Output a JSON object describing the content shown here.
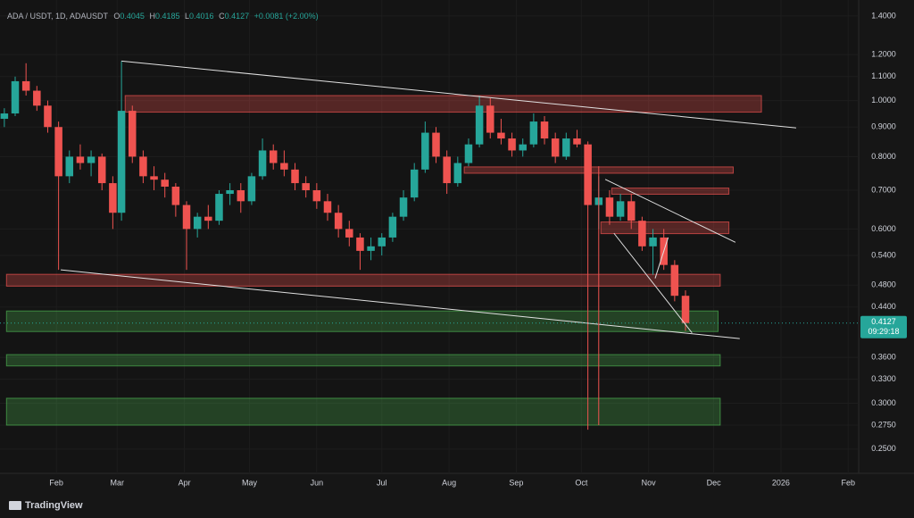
{
  "chart_data": {
    "type": "candlestick",
    "symbol": "ADA / USDT, 1D, ADAUSDT",
    "ohlc": [
      {
        "label": "O",
        "value": "0.4045"
      },
      {
        "label": "H",
        "value": "0.4185"
      },
      {
        "label": "L",
        "value": "0.4016"
      },
      {
        "label": "C",
        "value": "0.4127"
      }
    ],
    "change": "+0.0081 (+2.00%)",
    "brand": "TradingView",
    "log_scale": true,
    "up_color": "#26a69a",
    "down_color": "#ef5350",
    "ylim": [
      0.227,
      1.45
    ],
    "yticks": [
      {
        "value": 1.4,
        "label": "1.4000"
      },
      {
        "value": 1.2,
        "label": "1.2000"
      },
      {
        "value": 1.1,
        "label": "1.1000"
      },
      {
        "value": 1.0,
        "label": "1.0000"
      },
      {
        "value": 0.9,
        "label": "0.9000"
      },
      {
        "value": 0.8,
        "label": "0.8000"
      },
      {
        "value": 0.7,
        "label": "0.7000"
      },
      {
        "value": 0.6,
        "label": "0.6000"
      },
      {
        "value": 0.54,
        "label": "0.5400"
      },
      {
        "value": 0.48,
        "label": "0.4800"
      },
      {
        "value": 0.44,
        "label": "0.4400"
      },
      {
        "value": 0.36,
        "label": "0.3600"
      },
      {
        "value": 0.33,
        "label": "0.3300"
      },
      {
        "value": 0.3,
        "label": "0.3000"
      },
      {
        "value": 0.275,
        "label": "0.2750"
      },
      {
        "value": 0.25,
        "label": "0.2500"
      }
    ],
    "xlim": [
      5,
      400
    ],
    "xticks": [
      {
        "value": 31,
        "label": "Feb"
      },
      {
        "value": 59,
        "label": "Mar"
      },
      {
        "value": 90,
        "label": "Apr"
      },
      {
        "value": 120,
        "label": "May"
      },
      {
        "value": 151,
        "label": "Jun"
      },
      {
        "value": 181,
        "label": "Jul"
      },
      {
        "value": 212,
        "label": "Aug"
      },
      {
        "value": 243,
        "label": "Sep"
      },
      {
        "value": 273,
        "label": "Oct"
      },
      {
        "value": 304,
        "label": "Nov"
      },
      {
        "value": 334,
        "label": "Dec"
      },
      {
        "value": 365,
        "label": "2026"
      },
      {
        "value": 396,
        "label": "Feb"
      }
    ],
    "last_price": {
      "value": 0.4127,
      "label": "0.4127"
    },
    "countdown": "09:29:18",
    "x": [
      7,
      12,
      17,
      22,
      27,
      32,
      37,
      42,
      47,
      52,
      57,
      61,
      66,
      71,
      76,
      81,
      86,
      91,
      96,
      101,
      106,
      111,
      116,
      121,
      126,
      131,
      136,
      141,
      146,
      151,
      156,
      161,
      166,
      171,
      176,
      181,
      186,
      191,
      196,
      201,
      206,
      211,
      216,
      221,
      226,
      231,
      236,
      241,
      246,
      251,
      256,
      261,
      266,
      271,
      276,
      281,
      286,
      291,
      296,
      301,
      306,
      311,
      316,
      321
    ],
    "open": [
      0.93,
      0.95,
      1.08,
      1.04,
      0.98,
      0.9,
      0.74,
      0.8,
      0.78,
      0.8,
      0.72,
      0.64,
      0.96,
      0.8,
      0.74,
      0.73,
      0.71,
      0.66,
      0.6,
      0.63,
      0.62,
      0.69,
      0.7,
      0.67,
      0.74,
      0.82,
      0.78,
      0.76,
      0.72,
      0.7,
      0.67,
      0.64,
      0.6,
      0.58,
      0.55,
      0.56,
      0.58,
      0.63,
      0.68,
      0.76,
      0.88,
      0.8,
      0.72,
      0.78,
      0.84,
      0.98,
      0.88,
      0.86,
      0.82,
      0.84,
      0.92,
      0.86,
      0.8,
      0.86,
      0.84,
      0.66,
      0.68,
      0.63,
      0.67,
      0.62,
      0.56,
      0.58,
      0.52,
      0.46
    ],
    "high": [
      0.97,
      1.1,
      1.16,
      1.06,
      1.0,
      0.92,
      0.82,
      0.84,
      0.82,
      0.81,
      0.74,
      1.17,
      0.98,
      0.82,
      0.77,
      0.75,
      0.72,
      0.67,
      0.64,
      0.66,
      0.7,
      0.72,
      0.72,
      0.75,
      0.86,
      0.84,
      0.82,
      0.78,
      0.74,
      0.72,
      0.69,
      0.66,
      0.62,
      0.59,
      0.58,
      0.59,
      0.64,
      0.7,
      0.78,
      0.92,
      0.9,
      0.82,
      0.8,
      0.86,
      1.02,
      1.01,
      0.93,
      0.88,
      0.86,
      0.95,
      0.94,
      0.88,
      0.88,
      0.89,
      0.85,
      0.74,
      0.7,
      0.69,
      0.69,
      0.63,
      0.6,
      0.6,
      0.53,
      0.47
    ],
    "low": [
      0.9,
      0.94,
      1.02,
      0.96,
      0.88,
      0.51,
      0.72,
      0.76,
      0.74,
      0.7,
      0.6,
      0.62,
      0.78,
      0.72,
      0.7,
      0.68,
      0.63,
      0.51,
      0.58,
      0.6,
      0.61,
      0.66,
      0.64,
      0.66,
      0.73,
      0.76,
      0.74,
      0.7,
      0.68,
      0.65,
      0.62,
      0.58,
      0.56,
      0.51,
      0.53,
      0.54,
      0.57,
      0.62,
      0.67,
      0.75,
      0.78,
      0.69,
      0.71,
      0.77,
      0.83,
      0.86,
      0.84,
      0.8,
      0.8,
      0.83,
      0.84,
      0.78,
      0.79,
      0.83,
      0.27,
      0.6,
      0.61,
      0.62,
      0.6,
      0.55,
      0.5,
      0.51,
      0.45,
      0.4
    ],
    "close": [
      0.95,
      1.08,
      1.04,
      0.98,
      0.9,
      0.74,
      0.8,
      0.78,
      0.8,
      0.72,
      0.64,
      0.96,
      0.8,
      0.74,
      0.73,
      0.71,
      0.66,
      0.6,
      0.63,
      0.62,
      0.69,
      0.7,
      0.67,
      0.74,
      0.82,
      0.78,
      0.76,
      0.72,
      0.7,
      0.67,
      0.64,
      0.6,
      0.58,
      0.55,
      0.56,
      0.58,
      0.63,
      0.68,
      0.76,
      0.88,
      0.8,
      0.72,
      0.78,
      0.84,
      0.98,
      0.88,
      0.86,
      0.82,
      0.84,
      0.92,
      0.86,
      0.8,
      0.86,
      0.84,
      0.66,
      0.68,
      0.63,
      0.67,
      0.62,
      0.56,
      0.58,
      0.52,
      0.46,
      0.4127
    ],
    "zones": [
      {
        "color": "#ef5350",
        "x": [
          62.7,
          356
        ],
        "y": [
          1.02,
          0.955
        ]
      },
      {
        "color": "#ef5350",
        "x": [
          219,
          343
        ],
        "y": [
          0.768,
          0.749
        ]
      },
      {
        "color": "#ef5350",
        "x": [
          287,
          341
        ],
        "y": [
          0.706,
          0.689
        ]
      },
      {
        "color": "#ef5350",
        "x": [
          282,
          341
        ],
        "y": [
          0.617,
          0.589
        ]
      },
      {
        "color": "#ef5350",
        "x": [
          8,
          337
        ],
        "y": [
          0.501,
          0.478
        ]
      },
      {
        "color": "#4caf50",
        "x": [
          8,
          336
        ],
        "y": [
          0.433,
          0.399
        ]
      },
      {
        "color": "#4caf50",
        "x": [
          8,
          337
        ],
        "y": [
          0.364,
          0.348
        ]
      },
      {
        "color": "#4caf50",
        "x": [
          8,
          337
        ],
        "y": [
          0.306,
          0.275
        ]
      }
    ],
    "lines": [
      {
        "color": "#e0e0e0",
        "x": [
          61,
          372
        ],
        "y": [
          1.17,
          0.897
        ]
      },
      {
        "color": "#e0e0e0",
        "x": [
          33,
          346
        ],
        "y": [
          0.51,
          0.388
        ]
      },
      {
        "color": "#e0e0e0",
        "x": [
          284,
          344
        ],
        "y": [
          0.731,
          0.569
        ]
      },
      {
        "color": "#e0e0e0",
        "x": [
          288,
          324
        ],
        "y": [
          0.59,
          0.397
        ]
      },
      {
        "color": "#e0e0e0",
        "x": [
          307,
          313
        ],
        "y": [
          0.493,
          0.58
        ]
      },
      {
        "color": "#ef5350",
        "x": [
          281,
          281
        ],
        "y": [
          0.77,
          0.275
        ]
      }
    ]
  }
}
